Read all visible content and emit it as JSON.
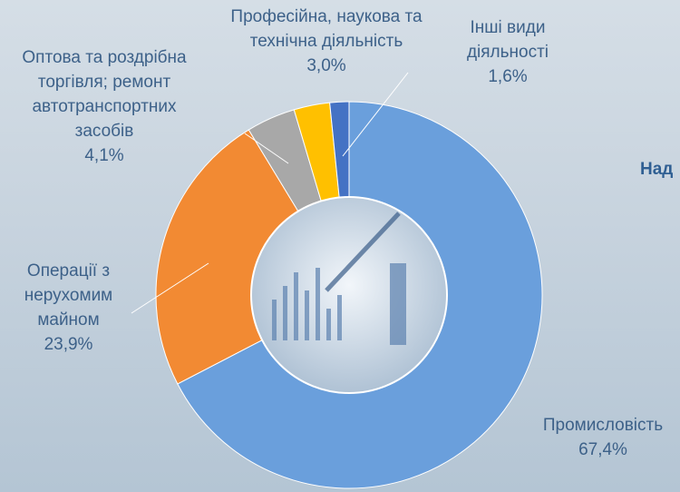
{
  "chart_data": {
    "type": "pie",
    "donut": true,
    "categories": [
      "Промисловість",
      "Операції з нерухомим майном",
      "Оптова та роздрібна торгівля; ремонт автотранспортних засобів",
      "Професійна, наукова та технічна діяльність",
      "Інші види діяльності"
    ],
    "values": [
      67.4,
      23.9,
      4.1,
      3.0,
      1.6
    ],
    "value_labels": [
      "67,4%",
      "23,9%",
      "4,1%",
      "3,0%",
      "1,6%"
    ],
    "colors": [
      "#6a9fdc",
      "#f28a33",
      "#a8a8a8",
      "#ffc000",
      "#4472c4"
    ],
    "annotation": "Над"
  }
}
